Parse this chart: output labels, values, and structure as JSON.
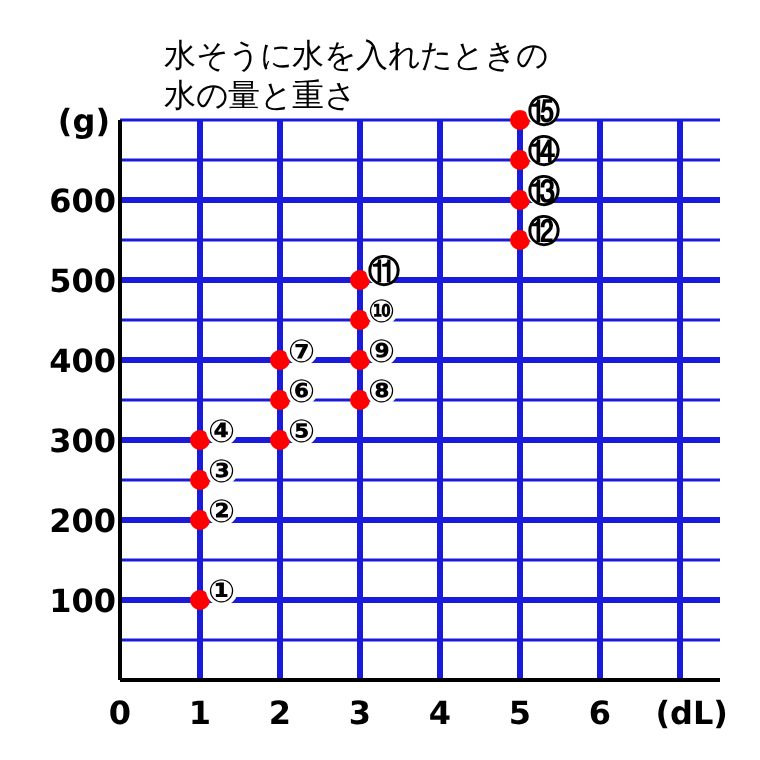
{
  "chart_data": {
    "type": "scatter",
    "title": "水そうに水を入れたときの水の量と重さ",
    "xlabel": "(dL)",
    "ylabel": "(g)",
    "x": [
      1,
      1,
      1,
      1,
      2,
      2,
      2,
      3,
      3,
      3,
      3,
      5,
      5,
      5,
      5
    ],
    "series": [
      {
        "color": "#ff0000",
        "values": [
          100,
          200,
          250,
          300,
          300,
          350,
          400,
          350,
          400,
          450,
          500,
          550,
          600,
          650,
          700
        ]
      }
    ],
    "value_labels": [
      "①",
      "②",
      "③",
      "④",
      "⑤",
      "⑥",
      "⑦",
      "⑧",
      "⑨",
      "⑩",
      "⑪",
      "⑫",
      "⑬",
      "⑭",
      "⑮"
    ],
    "xlim": [
      0,
      7.5
    ],
    "ylim": [
      0,
      700
    ],
    "xticks": [
      {
        "value": 0,
        "label": "0"
      },
      1,
      2,
      3,
      4,
      5,
      6,
      {
        "value": 7,
        "label": null
      }
    ],
    "yticks": [
      {
        "value": 0,
        "label": null
      },
      {
        "value": 50,
        "label": null
      },
      100,
      {
        "value": 150,
        "label": null
      },
      200,
      {
        "value": 250,
        "label": null
      },
      300,
      {
        "value": 350,
        "label": null
      },
      400,
      {
        "value": 450,
        "label": null
      },
      500,
      {
        "value": 550,
        "label": null
      },
      600,
      {
        "value": 650,
        "label": null
      },
      {
        "value": 700,
        "label": null
      }
    ],
    "grid": true,
    "marker": "circle"
  }
}
